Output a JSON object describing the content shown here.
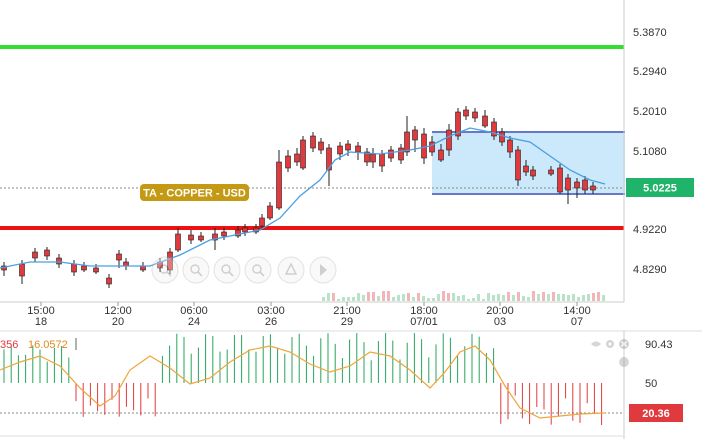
{
  "symbol_label": "TA - COPPER - USD",
  "price_axis": {
    "ticks": [
      "5.3870",
      "5.2940",
      "5.2010",
      "5.1080",
      "4.9220",
      "4.8290"
    ],
    "current_price": "5.0225"
  },
  "time_axis": [
    {
      "time": "15:00",
      "date": "18"
    },
    {
      "time": "12:00",
      "date": "20"
    },
    {
      "time": "06:00",
      "date": "24"
    },
    {
      "time": "03:00",
      "date": "26"
    },
    {
      "time": "21:00",
      "date": "29"
    },
    {
      "time": "18:00",
      "date": "07/01"
    },
    {
      "time": "20:00",
      "date": "03"
    },
    {
      "time": "14:00",
      "date": "07"
    }
  ],
  "indicator": {
    "value_left": "356",
    "value_main": "16.0572",
    "axis_ticks": [
      "90.43",
      "50"
    ],
    "current_value": "20.36"
  },
  "colors": {
    "up": "#26a65b",
    "down": "#e0393e",
    "resistance_line": "#33dd33",
    "support_line": "#ee1111",
    "sma": "#4a9fe0",
    "channel_fill": "#cce8fb",
    "channel_border": "#6677cc",
    "badge_bg": "#c49a14",
    "price_badge_bg": "#20b36a",
    "indicator_line": "#f0a43a"
  },
  "toolbar_icons": [
    "zoom-in-icon",
    "zoom-out-icon",
    "zoom-reset-icon",
    "scroll-left-icon",
    "scroll-right-icon",
    "go-to-latest-icon"
  ],
  "indicator_icons": [
    "eye-icon",
    "settings-icon",
    "close-icon"
  ]
}
